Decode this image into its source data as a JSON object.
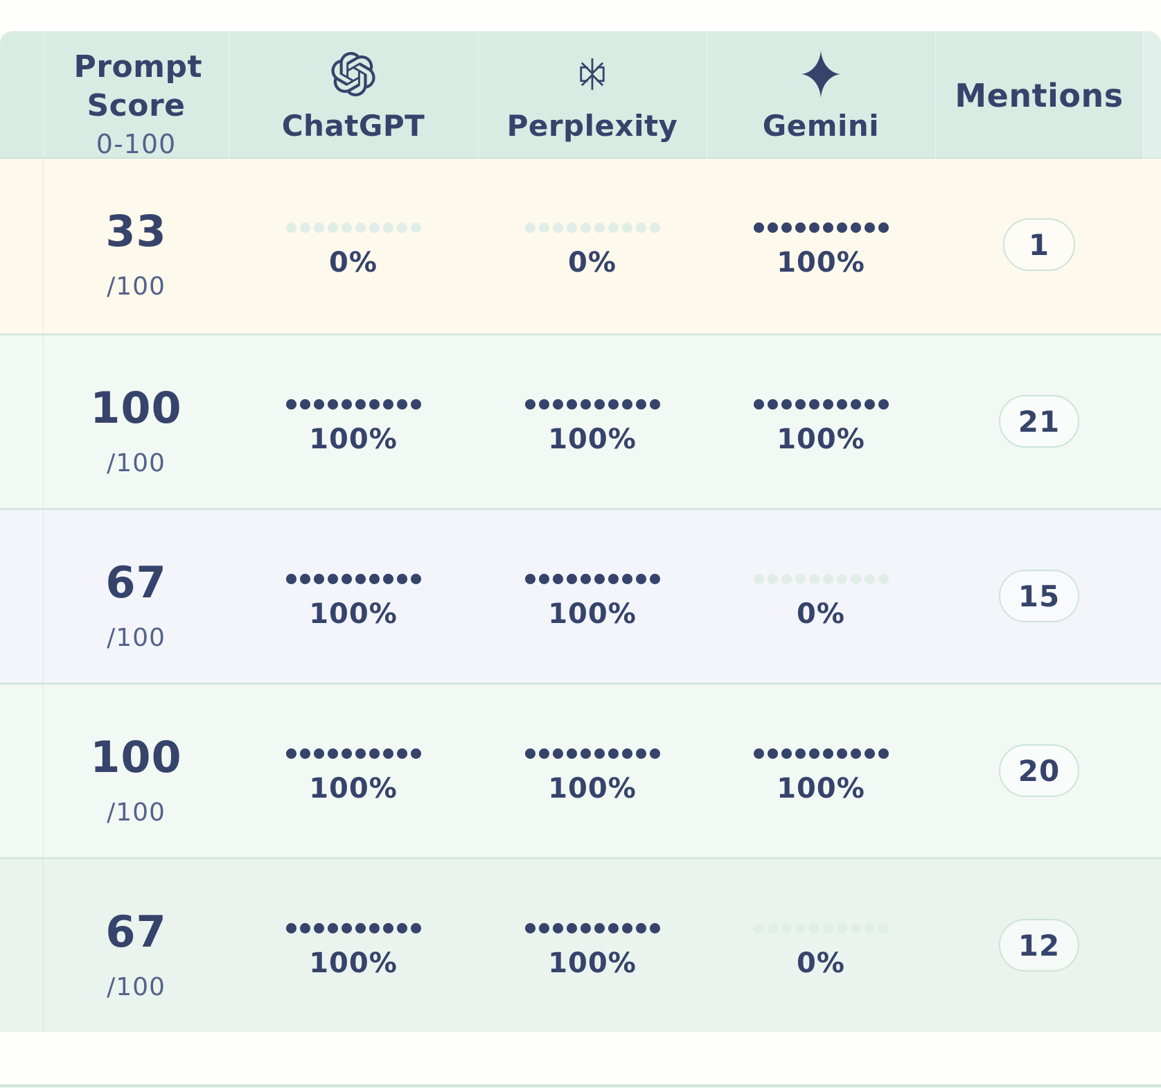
{
  "header": {
    "score_title": "Prompt Score",
    "score_range": "0-100",
    "platforms": [
      {
        "id": "chatgpt",
        "label": "ChatGPT",
        "icon": "openai-logo-icon"
      },
      {
        "id": "perplexity",
        "label": "Perplexity",
        "icon": "perplexity-logo-icon"
      },
      {
        "id": "gemini",
        "label": "Gemini",
        "icon": "gemini-logo-icon"
      }
    ],
    "mentions_label": "Mentions"
  },
  "meter": {
    "dots_total": 10
  },
  "rows": [
    {
      "score": "33",
      "score_suffix": "/100",
      "tint": "cream",
      "platforms": [
        {
          "id": "chatgpt",
          "percent": 0,
          "label": "0%"
        },
        {
          "id": "perplexity",
          "percent": 0,
          "label": "0%"
        },
        {
          "id": "gemini",
          "percent": 100,
          "label": "100%"
        }
      ],
      "mentions": "1"
    },
    {
      "score": "100",
      "score_suffix": "/100",
      "tint": "mint",
      "platforms": [
        {
          "id": "chatgpt",
          "percent": 100,
          "label": "100%"
        },
        {
          "id": "perplexity",
          "percent": 100,
          "label": "100%"
        },
        {
          "id": "gemini",
          "percent": 100,
          "label": "100%"
        }
      ],
      "mentions": "21"
    },
    {
      "score": "67",
      "score_suffix": "/100",
      "tint": "lavender",
      "platforms": [
        {
          "id": "chatgpt",
          "percent": 100,
          "label": "100%"
        },
        {
          "id": "perplexity",
          "percent": 100,
          "label": "100%"
        },
        {
          "id": "gemini",
          "percent": 0,
          "label": "0%"
        }
      ],
      "mentions": "15"
    },
    {
      "score": "100",
      "score_suffix": "/100",
      "tint": "mint",
      "platforms": [
        {
          "id": "chatgpt",
          "percent": 100,
          "label": "100%"
        },
        {
          "id": "perplexity",
          "percent": 100,
          "label": "100%"
        },
        {
          "id": "gemini",
          "percent": 100,
          "label": "100%"
        }
      ],
      "mentions": "20"
    },
    {
      "score": "67",
      "score_suffix": "/100",
      "tint": "mint-dark",
      "platforms": [
        {
          "id": "chatgpt",
          "percent": 100,
          "label": "100%"
        },
        {
          "id": "perplexity",
          "percent": 100,
          "label": "100%"
        },
        {
          "id": "gemini",
          "percent": 0,
          "label": "0%"
        }
      ],
      "mentions": "12"
    }
  ],
  "colors": {
    "navy": "#36436B",
    "navy_soft": "#54628B",
    "header_bg": "#D9ECE4",
    "row_cream": "#FDF9EC",
    "row_mint": "#F2F9F4",
    "row_lavender": "#F3F5FA",
    "row_mint_dark": "#EAF3EE",
    "separator": "#D6E6DF",
    "dot_empty": "#E0EEE7",
    "badge_border": "#CDE4D8",
    "page_bg": "#FEFEFC",
    "bottom_line": "#CFE0D8",
    "bottom_tint": "#EAF3EF"
  }
}
